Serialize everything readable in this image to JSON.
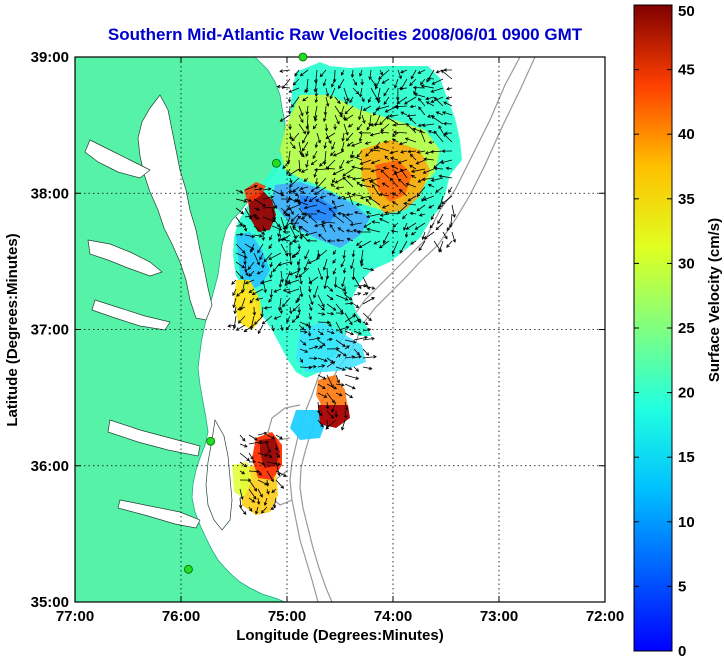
{
  "title": "Southern Mid-Atlantic Raw Velocities 2008/06/01 0900 GMT",
  "x_axis": {
    "label": "Longitude (Degrees:Minutes)",
    "ticks": [
      {
        "value": -77,
        "label": "77:00"
      },
      {
        "value": -76,
        "label": "76:00"
      },
      {
        "value": -75,
        "label": "75:00"
      },
      {
        "value": -74,
        "label": "74:00"
      },
      {
        "value": -73,
        "label": "73:00"
      },
      {
        "value": -72,
        "label": "72:00"
      }
    ],
    "range": [
      -77,
      -72
    ]
  },
  "y_axis": {
    "label": "Latitude (Degrees:Minutes)",
    "ticks": [
      {
        "value": 39,
        "label": "39:00"
      },
      {
        "value": 38,
        "label": "38:00"
      },
      {
        "value": 37,
        "label": "37:00"
      },
      {
        "value": 36,
        "label": "36:00"
      },
      {
        "value": 35,
        "label": "35:00"
      }
    ],
    "range": [
      35,
      39
    ]
  },
  "colorbar": {
    "label": "Surface Velocity (cm/s)",
    "range": [
      0,
      50
    ],
    "ticks": [
      {
        "value": 50,
        "label": "50"
      },
      {
        "value": 45,
        "label": "45"
      },
      {
        "value": 40,
        "label": "40"
      },
      {
        "value": 35,
        "label": "35"
      },
      {
        "value": 30,
        "label": "30"
      },
      {
        "value": 25,
        "label": "25"
      },
      {
        "value": 20,
        "label": "20"
      },
      {
        "value": 15,
        "label": "15"
      },
      {
        "value": 10,
        "label": "10"
      },
      {
        "value": 5,
        "label": "5"
      },
      {
        "value": 0,
        "label": "0"
      }
    ],
    "colormap": "jet"
  },
  "colors": {
    "land": "#55f2a8",
    "water": "#ffffff",
    "bathymetry": "#999999",
    "title": "#0000cc",
    "station": "#22dd22"
  },
  "grid": true,
  "stations": [
    {
      "lon": -74.85,
      "lat": 39.0
    },
    {
      "lon": -75.1,
      "lat": 38.22
    },
    {
      "lon": -75.72,
      "lat": 36.18
    },
    {
      "lon": -75.93,
      "lat": 35.24
    }
  ]
}
